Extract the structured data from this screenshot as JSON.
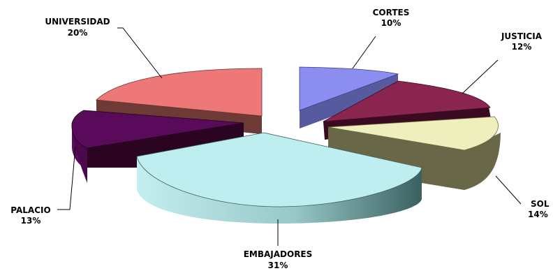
{
  "chart_data": {
    "type": "pie",
    "three_d": true,
    "exploded": true,
    "slices": [
      {
        "label": "CORTES",
        "value": 10,
        "percent_label": "10%",
        "color": "#8b8ef0"
      },
      {
        "label": "JUSTICIA",
        "value": 12,
        "percent_label": "12%",
        "color": "#8a2550"
      },
      {
        "label": "SOL",
        "value": 14,
        "percent_label": "14%",
        "color": "#efefbe"
      },
      {
        "label": "EMBAJADORES",
        "value": 31,
        "percent_label": "31%",
        "color": "#bfeef0"
      },
      {
        "label": "PALACIO",
        "value": 13,
        "percent_label": "13%",
        "color": "#5a0a5a"
      },
      {
        "label": "UNIVERSIDAD",
        "value": 20,
        "percent_label": "20%",
        "color": "#ee7878"
      }
    ]
  }
}
